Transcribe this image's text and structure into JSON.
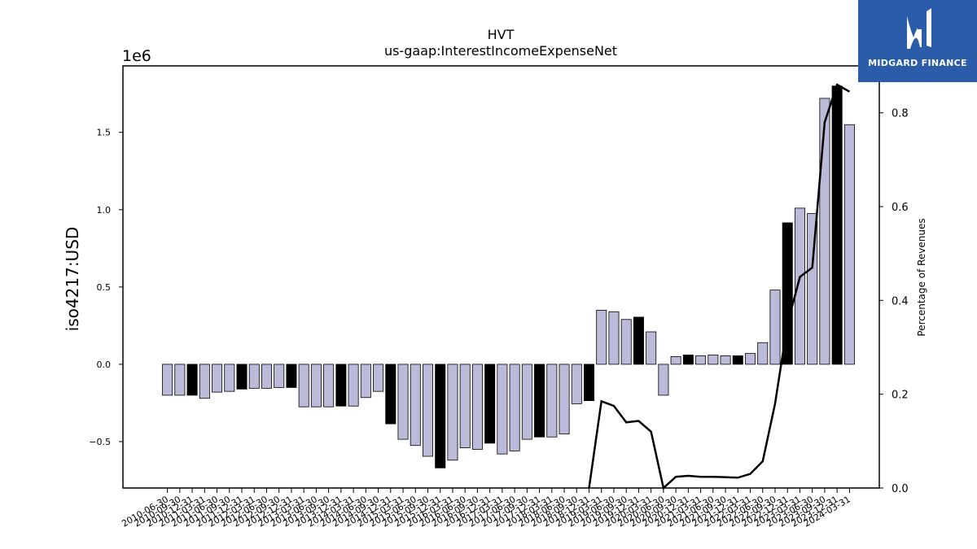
{
  "chart_data": {
    "type": "bar",
    "title": "HVT",
    "subtitle": "us-gaap:InterestIncomeExpenseNet",
    "ylabel": "iso4217:USD",
    "y2label": "Percentage of Revenues",
    "y_offset_label": "1e6",
    "ylim": [
      -800000,
      1930000
    ],
    "y2lim": [
      0.0,
      0.9
    ],
    "yticks": [
      "−0.5",
      "0.0",
      "0.5",
      "1.0",
      "1.5"
    ],
    "y2ticks": [
      "0.0",
      "0.2",
      "0.4",
      "0.6",
      "0.8"
    ],
    "categories": [
      "2010-06-30",
      "2010-09-30",
      "2010-12-31",
      "2011-03-31",
      "2011-06-30",
      "2011-09-30",
      "2011-12-31",
      "2012-03-31",
      "2012-06-30",
      "2012-09-30",
      "2012-12-31",
      "2013-03-31",
      "2013-06-30",
      "2013-09-30",
      "2013-12-31",
      "2014-03-31",
      "2014-06-30",
      "2014-09-30",
      "2014-12-31",
      "2015-03-31",
      "2015-06-30",
      "2015-09-30",
      "2015-12-31",
      "2016-03-31",
      "2016-06-30",
      "2016-09-30",
      "2016-12-31",
      "2017-03-31",
      "2017-06-30",
      "2017-09-30",
      "2017-12-31",
      "2018-03-31",
      "2018-06-30",
      "2018-09-30",
      "2018-12-31",
      "2019-03-31",
      "2019-06-30",
      "2019-09-30",
      "2019-12-31",
      "2020-03-31",
      "2020-06-30",
      "2020-09-30",
      "2020-12-31",
      "2021-03-31",
      "2021-06-30",
      "2021-09-30",
      "2021-12-31",
      "2022-03-31",
      "2022-06-30",
      "2022-09-30",
      "2022-12-31",
      "2023-03-31",
      "2023-06-30",
      "2023-09-30",
      "2023-12-31",
      "2024-03-31"
    ],
    "series": [
      {
        "values": [
          -200000,
          -200000,
          -200000,
          -220000,
          -180000,
          -175000,
          -160000,
          -155000,
          -155000,
          -150000,
          -150000,
          -275000,
          -275000,
          -275000,
          -270000,
          -270000,
          -215000,
          -175000,
          -385000,
          -485000,
          -525000,
          -595000,
          -670000,
          -620000,
          -540000,
          -550000,
          -510000,
          -580000,
          -560000,
          -485000,
          -470000,
          -470000,
          -450000,
          -255000,
          -235000,
          350000,
          340000,
          290000,
          305000,
          210000,
          -200000,
          50000,
          60000,
          55000,
          60000,
          55000,
          55000,
          70000,
          140000,
          480000,
          915000,
          1010000,
          975000,
          1720000,
          1800000,
          1550000
        ],
        "highlight": [
          false,
          false,
          true,
          false,
          false,
          false,
          true,
          false,
          false,
          false,
          true,
          false,
          false,
          false,
          true,
          false,
          false,
          false,
          true,
          false,
          false,
          false,
          true,
          false,
          false,
          false,
          true,
          false,
          false,
          false,
          true,
          false,
          false,
          false,
          true,
          false,
          false,
          false,
          true,
          false,
          false,
          false,
          true,
          false,
          false,
          false,
          true,
          false,
          false,
          false,
          true,
          false,
          false,
          false,
          true,
          false
        ],
        "color": "#bcbad9",
        "highlight_color": "#000000"
      },
      {
        "axis": "right",
        "type": "line",
        "color": "#000000",
        "values": [
          null,
          null,
          null,
          null,
          null,
          null,
          null,
          null,
          null,
          null,
          null,
          null,
          null,
          null,
          null,
          null,
          null,
          null,
          null,
          null,
          null,
          null,
          null,
          null,
          null,
          null,
          null,
          null,
          null,
          null,
          null,
          null,
          null,
          null,
          0.0,
          0.185,
          0.175,
          0.14,
          0.143,
          0.12,
          0.0,
          0.024,
          0.026,
          0.024,
          0.024,
          0.023,
          0.022,
          0.03,
          0.057,
          0.18,
          0.35,
          0.45,
          0.47,
          0.78,
          0.86,
          0.845
        ]
      }
    ],
    "grid": false
  },
  "logo": {
    "name": "MIDGARD FINANCE"
  }
}
